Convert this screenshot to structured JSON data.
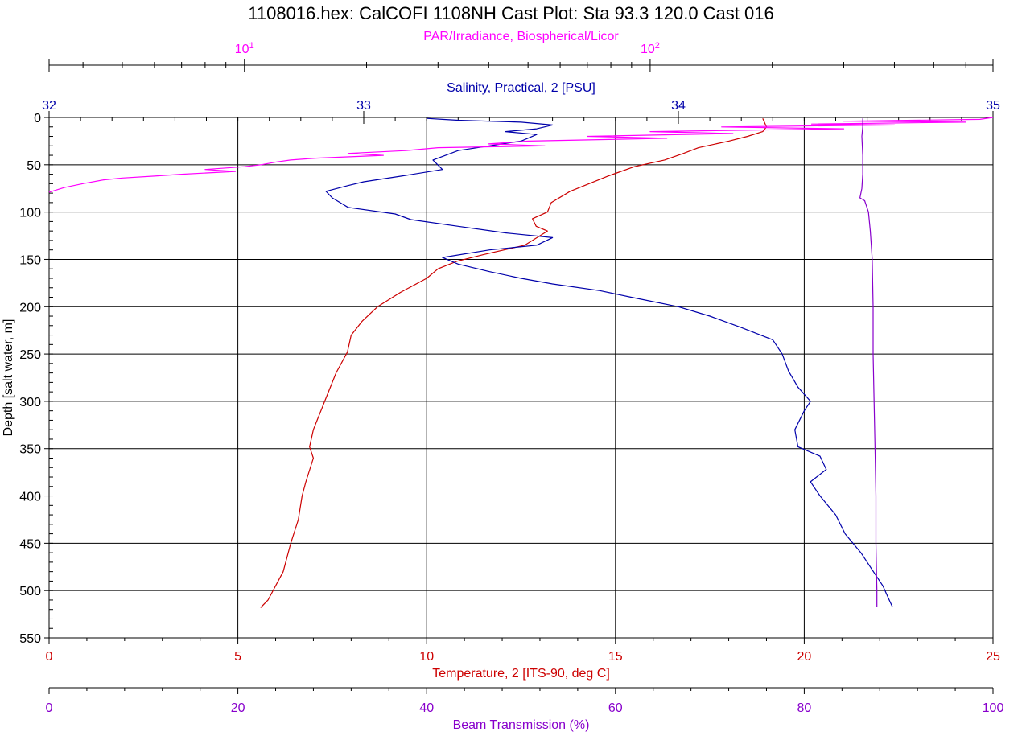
{
  "chart_data": {
    "type": "line",
    "title": "1108016.hex: CalCOFI 1108NH Cast Plot: Sta 93.3 120.0 Cast 016",
    "grid": true,
    "y_axis": {
      "label": "Depth [salt water, m]",
      "range": [
        0,
        550
      ],
      "inverted": true,
      "ticks": [
        "0",
        "50",
        "100",
        "150",
        "200",
        "250",
        "300",
        "350",
        "400",
        "450",
        "500",
        "550"
      ]
    },
    "x_axes": [
      {
        "id": "par",
        "label": "PAR/Irradiance, Biospherical/Licor",
        "scale": "log",
        "range": [
          3.3,
          700
        ],
        "ticks": [
          {
            "value": 10,
            "base": "10",
            "exp": "1"
          },
          {
            "value": 100,
            "base": "10",
            "exp": "2"
          }
        ],
        "color": "#ff00ff"
      },
      {
        "id": "salinity",
        "label": "Salinity, Practical, 2 [PSU]",
        "scale": "linear",
        "range": [
          32,
          35
        ],
        "ticks": [
          "32",
          "33",
          "34",
          "35"
        ],
        "color": "#0000aa"
      },
      {
        "id": "temperature",
        "label": "Temperature, 2 [ITS-90, deg C]",
        "scale": "linear",
        "range": [
          0,
          25
        ],
        "ticks": [
          "0",
          "5",
          "10",
          "15",
          "20",
          "25"
        ],
        "color": "#cc0000"
      },
      {
        "id": "beam",
        "label": "Beam Transmission (%)",
        "scale": "linear",
        "range": [
          0,
          100
        ],
        "ticks": [
          "0",
          "20",
          "40",
          "60",
          "80",
          "100"
        ],
        "color": "#8800cc"
      }
    ],
    "series": [
      {
        "axis": "temperature",
        "color": "#cc0000",
        "points": [
          [
            18.9,
            1
          ],
          [
            19.0,
            10
          ],
          [
            18.9,
            15
          ],
          [
            18.5,
            20
          ],
          [
            18.0,
            25
          ],
          [
            17.2,
            32
          ],
          [
            16.8,
            38
          ],
          [
            16.3,
            45
          ],
          [
            15.5,
            52
          ],
          [
            14.8,
            62
          ],
          [
            13.8,
            78
          ],
          [
            13.3,
            90
          ],
          [
            13.2,
            100
          ],
          [
            12.8,
            107
          ],
          [
            12.9,
            115
          ],
          [
            13.2,
            120
          ],
          [
            12.6,
            135
          ],
          [
            11.5,
            145
          ],
          [
            10.8,
            152
          ],
          [
            10.3,
            160
          ],
          [
            10.0,
            170
          ],
          [
            9.3,
            185
          ],
          [
            8.7,
            200
          ],
          [
            8.3,
            215
          ],
          [
            8.0,
            230
          ],
          [
            7.9,
            248
          ],
          [
            7.6,
            270
          ],
          [
            7.3,
            300
          ],
          [
            7.1,
            320
          ],
          [
            7.0,
            330
          ],
          [
            6.9,
            348
          ],
          [
            7.0,
            360
          ],
          [
            6.8,
            385
          ],
          [
            6.7,
            400
          ],
          [
            6.6,
            425
          ],
          [
            6.4,
            450
          ],
          [
            6.2,
            480
          ],
          [
            5.8,
            510
          ],
          [
            5.6,
            518
          ]
        ]
      },
      {
        "axis": "salinity",
        "color": "#0000aa",
        "points": [
          [
            33.2,
            1
          ],
          [
            33.25,
            2
          ],
          [
            33.3,
            3
          ],
          [
            33.5,
            5
          ],
          [
            33.6,
            8
          ],
          [
            33.55,
            12
          ],
          [
            33.45,
            15
          ],
          [
            33.55,
            18
          ],
          [
            33.5,
            25
          ],
          [
            33.3,
            35
          ],
          [
            33.22,
            45
          ],
          [
            33.25,
            55
          ],
          [
            33.12,
            62
          ],
          [
            33.0,
            68
          ],
          [
            32.95,
            72
          ],
          [
            32.88,
            78
          ],
          [
            32.9,
            85
          ],
          [
            32.95,
            95
          ],
          [
            33.1,
            102
          ],
          [
            33.15,
            108
          ],
          [
            33.3,
            115
          ],
          [
            33.45,
            122
          ],
          [
            33.6,
            127
          ],
          [
            33.55,
            135
          ],
          [
            33.4,
            140
          ],
          [
            33.25,
            148
          ],
          [
            33.3,
            155
          ],
          [
            33.4,
            163
          ],
          [
            33.5,
            170
          ],
          [
            33.6,
            176
          ],
          [
            33.75,
            183
          ],
          [
            33.85,
            190
          ],
          [
            34.0,
            200
          ],
          [
            34.1,
            210
          ],
          [
            34.2,
            222
          ],
          [
            34.3,
            235
          ],
          [
            34.33,
            250
          ],
          [
            34.35,
            268
          ],
          [
            34.38,
            285
          ],
          [
            34.42,
            300
          ],
          [
            34.4,
            310
          ],
          [
            34.37,
            330
          ],
          [
            34.38,
            348
          ],
          [
            34.45,
            358
          ],
          [
            34.47,
            372
          ],
          [
            34.42,
            385
          ],
          [
            34.45,
            400
          ],
          [
            34.5,
            420
          ],
          [
            34.53,
            440
          ],
          [
            34.58,
            460
          ],
          [
            34.62,
            480
          ],
          [
            34.65,
            495
          ],
          [
            34.67,
            510
          ],
          [
            34.68,
            517
          ]
        ]
      },
      {
        "axis": "par",
        "color": "#ff00ff",
        "points": [
          [
            700,
            0
          ],
          [
            650,
            2
          ],
          [
            300,
            4
          ],
          [
            600,
            5
          ],
          [
            250,
            7
          ],
          [
            400,
            8
          ],
          [
            150,
            10
          ],
          [
            300,
            12
          ],
          [
            100,
            15
          ],
          [
            160,
            17
          ],
          [
            70,
            20
          ],
          [
            110,
            22
          ],
          [
            50,
            25
          ],
          [
            40,
            28
          ],
          [
            55,
            30
          ],
          [
            30,
            32
          ],
          [
            25,
            35
          ],
          [
            18,
            38
          ],
          [
            22,
            40
          ],
          [
            15,
            43
          ],
          [
            13,
            45
          ],
          [
            12,
            47
          ],
          [
            11,
            50
          ],
          [
            10,
            52
          ],
          [
            8,
            55
          ],
          [
            9.5,
            57
          ],
          [
            7,
            60
          ],
          [
            6,
            62
          ],
          [
            5,
            64
          ],
          [
            4.5,
            66
          ],
          [
            4,
            70
          ],
          [
            3.6,
            74
          ],
          [
            3.3,
            79
          ]
        ]
      },
      {
        "axis": "beam",
        "color": "#8800cc",
        "points": [
          [
            86.2,
            1
          ],
          [
            86.2,
            10
          ],
          [
            86.1,
            20
          ],
          [
            86.2,
            40
          ],
          [
            86.2,
            60
          ],
          [
            86.1,
            75
          ],
          [
            85.9,
            85
          ],
          [
            86.4,
            88
          ],
          [
            86.8,
            100
          ],
          [
            87.0,
            120
          ],
          [
            87.2,
            150
          ],
          [
            87.3,
            200
          ],
          [
            87.3,
            250
          ],
          [
            87.4,
            300
          ],
          [
            87.5,
            350
          ],
          [
            87.6,
            400
          ],
          [
            87.6,
            450
          ],
          [
            87.7,
            500
          ],
          [
            87.7,
            517
          ]
        ]
      }
    ]
  }
}
